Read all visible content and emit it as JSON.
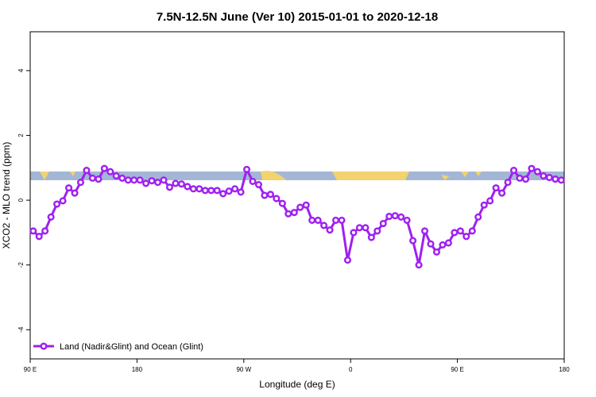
{
  "chart_data": {
    "type": "line",
    "title": "7.5N-12.5N June (Ver 10)   2015-01-01 to 2020-12-18",
    "x_label": "Longitude (deg E)",
    "y_label": "XCO2 - MLO trend (ppm)",
    "xlim": [
      90,
      540
    ],
    "ylim": [
      -4.9,
      5.2
    ],
    "xticks": [
      {
        "value": 90,
        "label": "90 E"
      },
      180,
      {
        "value": 270,
        "label": "90 W"
      },
      {
        "value": 360,
        "label": "0"
      },
      {
        "value": 450,
        "label": "90 E"
      },
      {
        "value": 540,
        "label": "180"
      }
    ],
    "yticks": [
      -4,
      -2,
      0,
      2,
      4
    ],
    "legend": "bottom-left",
    "x": [
      92.5,
      97.5,
      102.5,
      107.5,
      112.5,
      117.5,
      122.5,
      127.5,
      132.5,
      137.5,
      142.5,
      147.5,
      152.5,
      157.5,
      162.5,
      167.5,
      172.5,
      177.5,
      182.5,
      187.5,
      192.5,
      197.5,
      202.5,
      207.5,
      212.5,
      217.5,
      222.5,
      227.5,
      232.5,
      237.5,
      242.5,
      247.5,
      252.5,
      257.5,
      262.5,
      267.5,
      272.5,
      277.5,
      282.5,
      287.5,
      292.5,
      297.5,
      302.5,
      307.5,
      312.5,
      317.5,
      322.5,
      327.5,
      332.5,
      337.5,
      342.5,
      347.5,
      352.5,
      357.5,
      362.5,
      367.5,
      372.5,
      377.5,
      382.5,
      387.5,
      392.5,
      397.5,
      402.5,
      407.5,
      412.5,
      417.5,
      422.5,
      427.5,
      432.5,
      437.5,
      442.5,
      447.5,
      452.5,
      457.5,
      462.5,
      467.5,
      472.5,
      477.5,
      482.5,
      487.5,
      492.5,
      497.5,
      502.5,
      507.5,
      512.5,
      517.5,
      522.5,
      527.5,
      532.5,
      537.5
    ],
    "series": [
      {
        "name": "Land (Nadir&Glint) and Ocean (Glint)",
        "color": "#a020f0",
        "values": [
          -0.95,
          -1.12,
          -0.95,
          -0.52,
          -0.12,
          -0.02,
          0.38,
          0.22,
          0.55,
          0.92,
          0.68,
          0.65,
          0.98,
          0.88,
          0.75,
          0.68,
          0.62,
          0.62,
          0.62,
          0.52,
          0.6,
          0.55,
          0.62,
          0.4,
          0.52,
          0.5,
          0.42,
          0.35,
          0.35,
          0.3,
          0.3,
          0.3,
          0.2,
          0.28,
          0.35,
          0.25,
          0.95,
          0.58,
          0.48,
          0.15,
          0.18,
          0.05,
          -0.1,
          -0.42,
          -0.38,
          -0.22,
          -0.15,
          -0.62,
          -0.62,
          -0.78,
          -0.92,
          -0.62,
          -0.62,
          -1.85,
          -1.0,
          -0.85,
          -0.85,
          -1.15,
          -0.95,
          -0.72,
          -0.5,
          -0.48,
          -0.52,
          -0.62,
          -1.25,
          -2.0,
          -0.95,
          -1.35,
          -1.6,
          -1.38,
          -1.32,
          -1.0,
          -0.95,
          -1.12,
          -0.95,
          -0.52,
          -0.15,
          -0.02,
          0.38,
          0.22,
          0.55,
          0.92,
          0.68,
          0.65,
          0.98,
          0.88,
          0.75,
          0.7,
          0.65,
          0.62
        ]
      }
    ]
  }
}
